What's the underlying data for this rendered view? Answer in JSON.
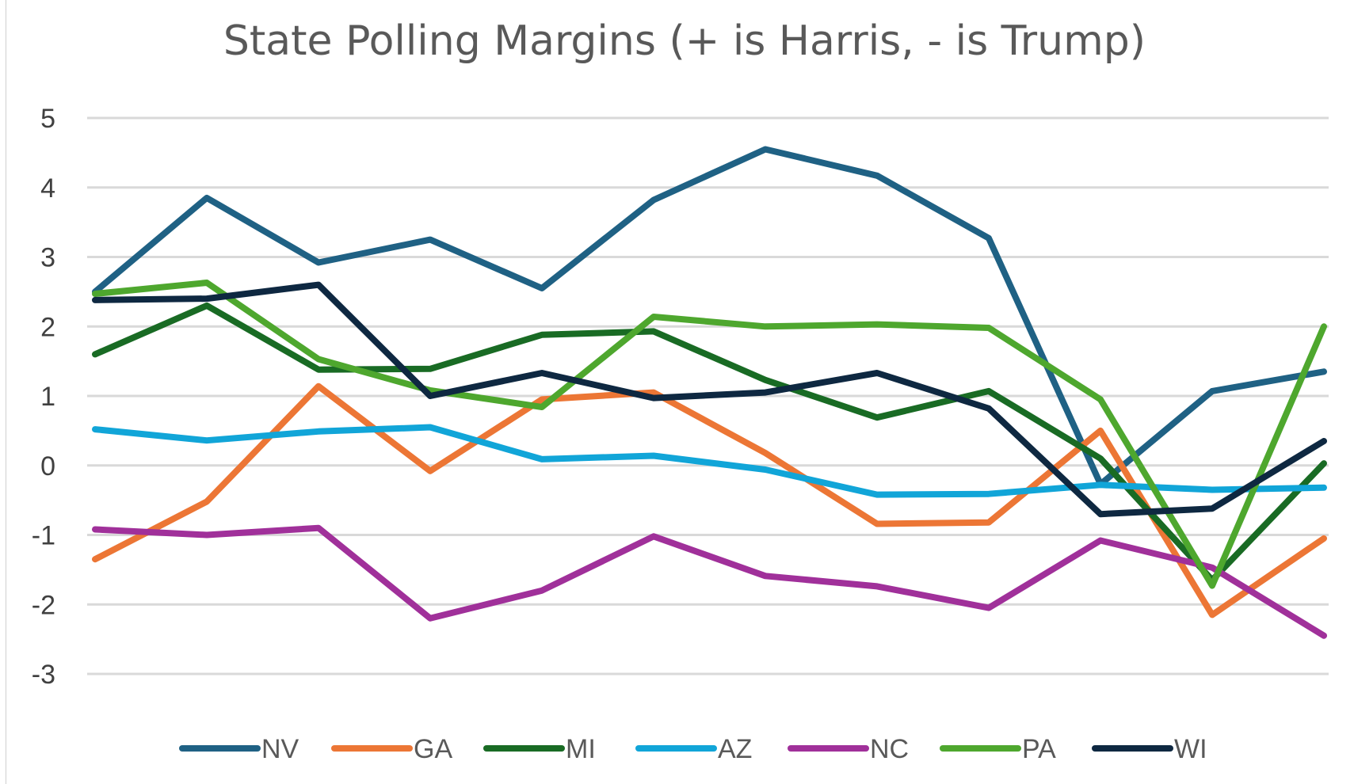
{
  "chart_data": {
    "type": "line",
    "title": "State Polling Margins (+ is Harris, - is Trump)",
    "xlabel": "",
    "ylabel": "",
    "ylim": [
      -3,
      5
    ],
    "yticks": [
      5,
      4,
      3,
      2,
      1,
      0,
      -1,
      -2,
      -3
    ],
    "y_tick_labels": [
      "5",
      "4",
      "3",
      "2",
      "1",
      "0",
      "-1",
      "-2",
      "-3"
    ],
    "grid": true,
    "legend_position": "bottom",
    "x_count": 12,
    "series": [
      {
        "name": "NV",
        "color": "#1f6184",
        "values": [
          2.5,
          3.85,
          2.92,
          3.25,
          2.55,
          3.82,
          4.55,
          4.17,
          3.27,
          -0.27,
          1.07,
          1.35
        ]
      },
      {
        "name": "GA",
        "color": "#ec7635",
        "values": [
          -1.35,
          -0.52,
          1.14,
          -0.08,
          0.95,
          1.05,
          0.18,
          -0.84,
          -0.82,
          0.5,
          -2.15,
          -1.05
        ]
      },
      {
        "name": "MI",
        "color": "#196b24",
        "values": [
          1.6,
          2.3,
          1.38,
          1.39,
          1.88,
          1.93,
          1.23,
          0.69,
          1.07,
          0.1,
          -1.65,
          0.03
        ]
      },
      {
        "name": "AZ",
        "color": "#11a5d8",
        "values": [
          0.52,
          0.36,
          0.49,
          0.55,
          0.09,
          0.14,
          -0.06,
          -0.42,
          -0.41,
          -0.28,
          -0.35,
          -0.32
        ]
      },
      {
        "name": "NC",
        "color": "#a0309a",
        "values": [
          -0.92,
          -1.0,
          -0.9,
          -2.2,
          -1.8,
          -1.02,
          -1.59,
          -1.74,
          -2.05,
          -1.08,
          -1.47,
          -2.45
        ]
      },
      {
        "name": "PA",
        "color": "#4ea72e",
        "values": [
          2.47,
          2.63,
          1.53,
          1.08,
          0.84,
          2.14,
          2.0,
          2.03,
          1.98,
          0.95,
          -1.73,
          2.0
        ]
      },
      {
        "name": "WI",
        "color": "#0e2841",
        "values": [
          2.38,
          2.4,
          2.6,
          1.0,
          1.33,
          0.97,
          1.05,
          1.33,
          0.82,
          -0.7,
          -0.62,
          0.35
        ]
      }
    ]
  }
}
